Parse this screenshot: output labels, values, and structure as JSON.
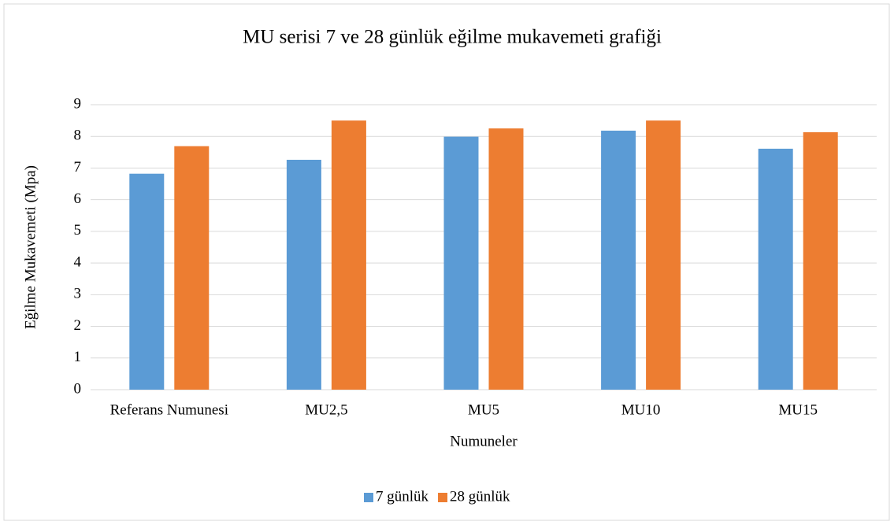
{
  "chart_data": {
    "type": "bar",
    "title": "MU serisi 7 ve 28 günlük eğilme mukavemeti grafiği",
    "x_label": "Numuneler",
    "y_label": "Eğilme Mukavemeti (Mpa)",
    "categories": [
      "Referans Numunesi",
      "MU2,5",
      "MU5",
      "MU10",
      "MU15"
    ],
    "series": [
      {
        "name": "7 günlük",
        "color": "#5b9bd5",
        "values": [
          6.82,
          7.26,
          7.99,
          8.18,
          7.61
        ]
      },
      {
        "name": "28 günlük",
        "color": "#ed7d31",
        "values": [
          7.69,
          8.5,
          8.25,
          8.5,
          8.13
        ]
      }
    ],
    "ylim": [
      0,
      9
    ],
    "yticks": [
      0,
      1,
      2,
      3,
      4,
      5,
      6,
      7,
      8,
      9
    ],
    "grid": true,
    "legend": "bottom"
  }
}
